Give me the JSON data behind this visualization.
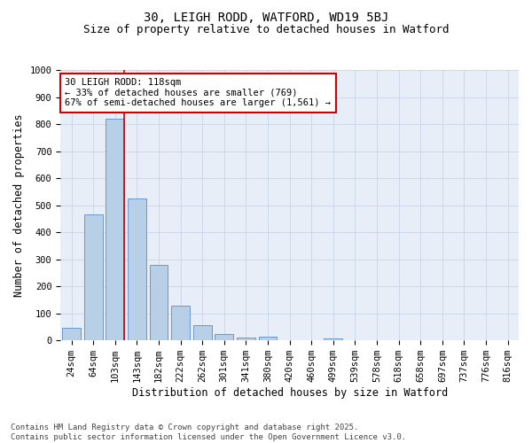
{
  "title_line1": "30, LEIGH RODD, WATFORD, WD19 5BJ",
  "title_line2": "Size of property relative to detached houses in Watford",
  "xlabel": "Distribution of detached houses by size in Watford",
  "ylabel": "Number of detached properties",
  "categories": [
    "24sqm",
    "64sqm",
    "103sqm",
    "143sqm",
    "182sqm",
    "222sqm",
    "262sqm",
    "301sqm",
    "341sqm",
    "380sqm",
    "420sqm",
    "460sqm",
    "499sqm",
    "539sqm",
    "578sqm",
    "618sqm",
    "658sqm",
    "697sqm",
    "737sqm",
    "776sqm",
    "816sqm"
  ],
  "values": [
    46,
    465,
    820,
    525,
    278,
    128,
    57,
    25,
    10,
    13,
    0,
    0,
    7,
    0,
    0,
    0,
    0,
    0,
    0,
    0,
    0
  ],
  "bar_color": "#b8cfe8",
  "bar_edge_color": "#5b8dc8",
  "red_line_index": 2,
  "annotation_text": "30 LEIGH RODD: 118sqm\n← 33% of detached houses are smaller (769)\n67% of semi-detached houses are larger (1,561) →",
  "annotation_box_color": "#ffffff",
  "annotation_box_edge": "#cc0000",
  "red_line_color": "#cc0000",
  "grid_color": "#c8d4e8",
  "bg_color": "#e8eef8",
  "ylim": [
    0,
    1000
  ],
  "yticks": [
    0,
    100,
    200,
    300,
    400,
    500,
    600,
    700,
    800,
    900,
    1000
  ],
  "footnote": "Contains HM Land Registry data © Crown copyright and database right 2025.\nContains public sector information licensed under the Open Government Licence v3.0.",
  "title_fontsize": 10,
  "subtitle_fontsize": 9,
  "axis_label_fontsize": 8.5,
  "tick_fontsize": 7.5,
  "annotation_fontsize": 7.5,
  "footnote_fontsize": 6.5
}
